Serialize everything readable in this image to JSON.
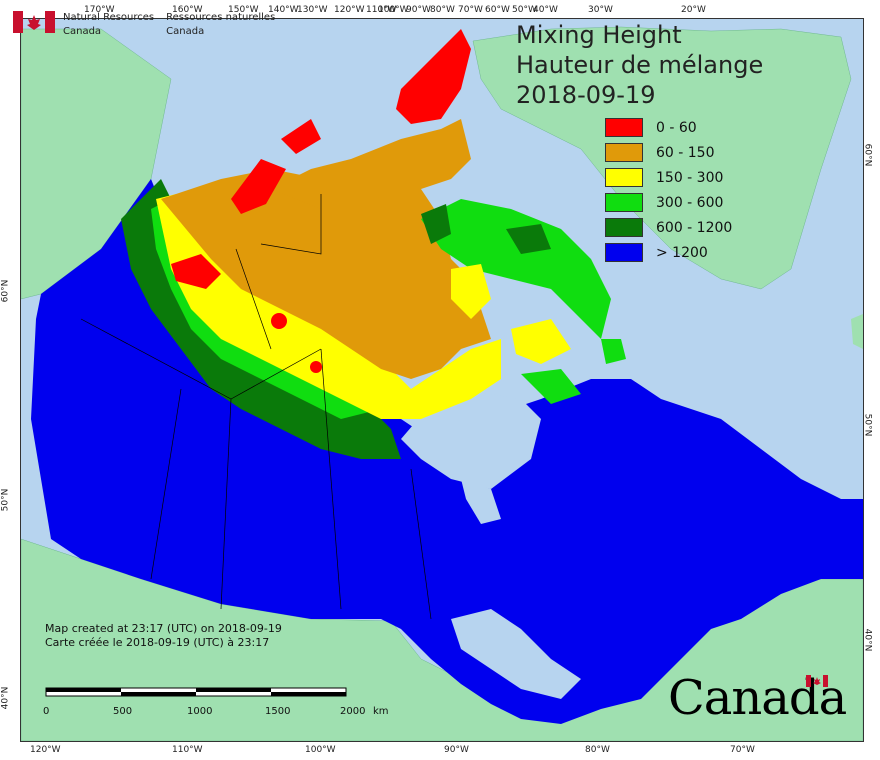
{
  "map": {
    "title_en": "Mixing Height",
    "title_fr": "Hauteur de mélange",
    "date": "2018-09-19",
    "legend": [
      {
        "label": "0 - 60",
        "color": "#ff0000"
      },
      {
        "label": "60 - 150",
        "color": "#e09a0a"
      },
      {
        "label": "150 - 300",
        "color": "#ffff00"
      },
      {
        "label": "300 - 600",
        "color": "#10dd10"
      },
      {
        "label": "600 - 1200",
        "color": "#0a7a0a"
      },
      {
        "label": "> 1200",
        "color": "#0000ee"
      }
    ],
    "colors": {
      "water": "#b7d4ef",
      "foreign_land": "#9fe0b0",
      "border_line": "#000000"
    }
  },
  "agency": {
    "name_en_1": "Natural Resources",
    "name_en_2": "Canada",
    "name_fr_1": "Ressources naturelles",
    "name_fr_2": "Canada"
  },
  "credits": {
    "line_en": "Map created at 23:17 (UTC) on 2018-09-19",
    "line_fr": "Carte créée le 2018-09-19 (UTC) à 23:17"
  },
  "scale": {
    "ticks": [
      "0",
      "500",
      "1000",
      "1500",
      "2000"
    ],
    "unit": "km"
  },
  "wordmark": "Canada",
  "graticule": {
    "lon_top": [
      "170°W",
      "160°W",
      "150°W",
      "140°W",
      "130°W",
      "120°W",
      "110°W",
      "100°W",
      "90°W",
      "80°W",
      "70°W",
      "60°W",
      "50°W",
      "40°W",
      "30°W",
      "20°W"
    ],
    "lon_bottom": [
      "120°W",
      "110°W",
      "100°W",
      "90°W",
      "80°W",
      "70°W"
    ],
    "lat_left": [
      "60°N",
      "50°N",
      "40°N"
    ],
    "lat_right": [
      "60°N",
      "50°N",
      "40°N"
    ]
  }
}
